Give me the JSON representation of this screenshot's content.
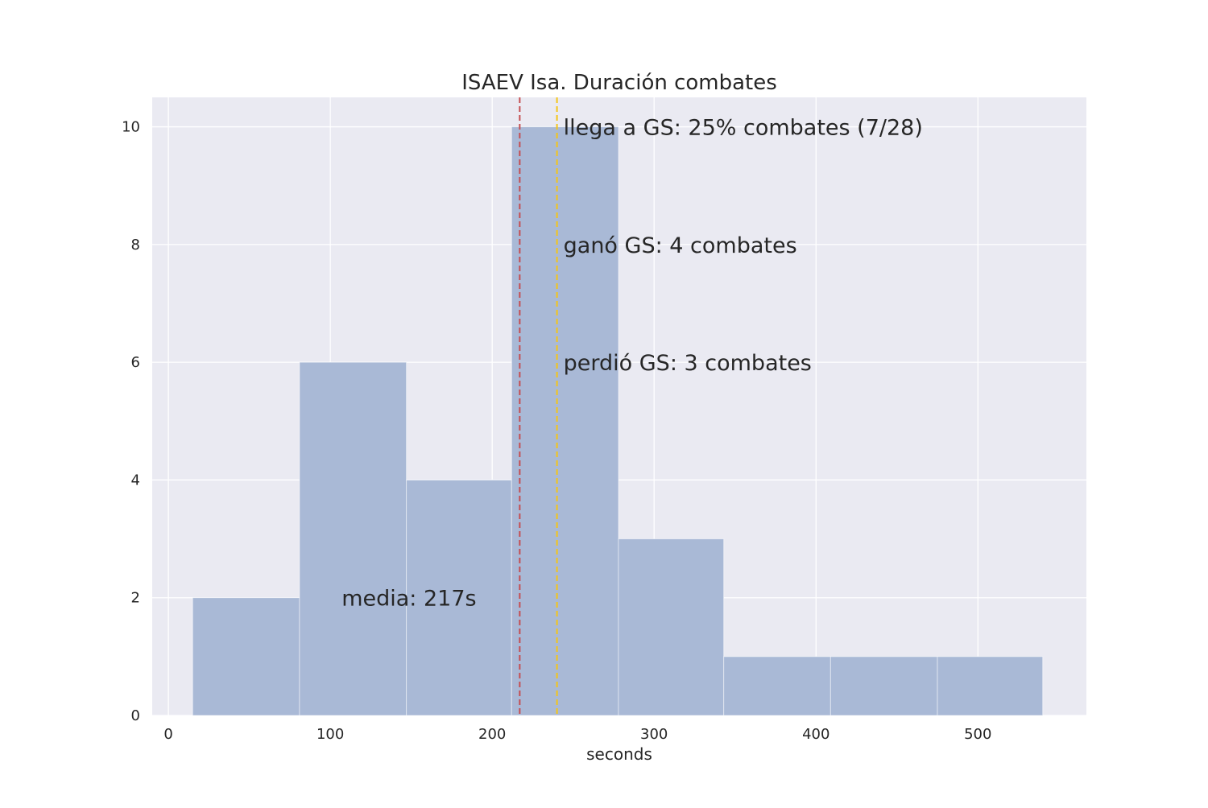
{
  "chart_data": {
    "type": "bar",
    "title": "ISAEV Isa. Duración combates",
    "xlabel": "seconds",
    "ylabel": "",
    "xlim": [
      -10,
      567
    ],
    "ylim": [
      0,
      10.5
    ],
    "xticks": [
      0,
      100,
      200,
      300,
      400,
      500
    ],
    "yticks": [
      0,
      2,
      4,
      6,
      8,
      10
    ],
    "grid": true,
    "bins": [
      {
        "x0": 15,
        "x1": 81,
        "count": 2
      },
      {
        "x0": 81,
        "x1": 147,
        "count": 6
      },
      {
        "x0": 147,
        "x1": 212,
        "count": 4
      },
      {
        "x0": 212,
        "x1": 278,
        "count": 10
      },
      {
        "x0": 278,
        "x1": 343,
        "count": 3
      },
      {
        "x0": 343,
        "x1": 409,
        "count": 1
      },
      {
        "x0": 409,
        "x1": 475,
        "count": 1
      },
      {
        "x0": 475,
        "x1": 540,
        "count": 1
      }
    ],
    "bar_color": "#a9b9d6",
    "vlines": [
      {
        "x": 217,
        "color": "#c44e52",
        "style": "dashed",
        "label": "mean"
      },
      {
        "x": 240,
        "color": "#f5c518",
        "style": "dashed",
        "label": "GS"
      }
    ],
    "annotations": [
      {
        "text": "llega a GS: 25% combates (7/28)",
        "x": 244,
        "y": 10,
        "color": "#262626"
      },
      {
        "text": "ganó GS: 4 combates",
        "x": 244,
        "y": 8,
        "color": "#262626"
      },
      {
        "text": "perdió GS: 3 combates",
        "x": 244,
        "y": 6,
        "color": "#262626"
      },
      {
        "text": "media: 217s",
        "x": 107,
        "y": 2,
        "color": "#c44e52"
      }
    ]
  }
}
